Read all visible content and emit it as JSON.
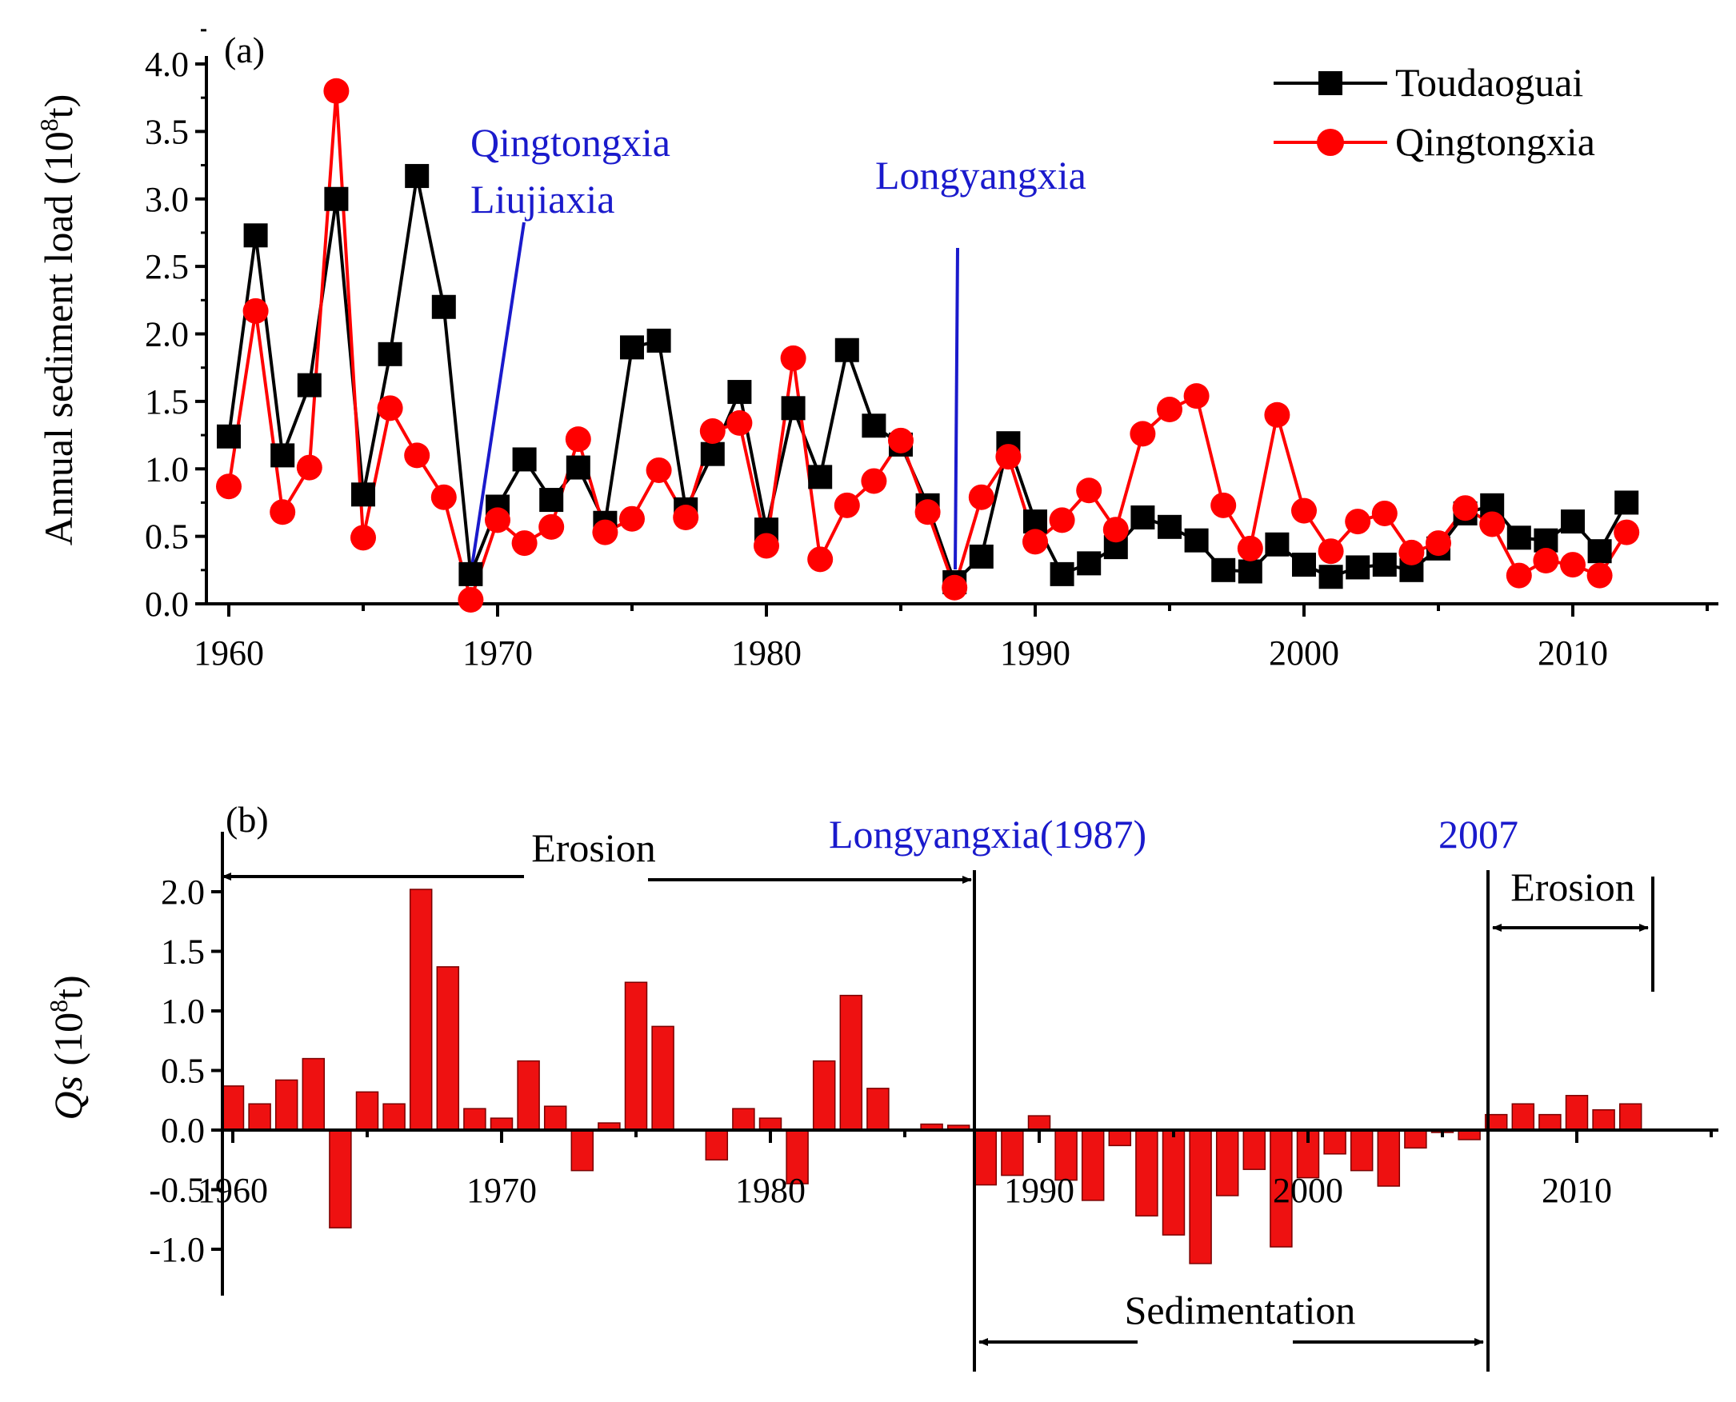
{
  "chart_data": [
    {
      "panel": "a",
      "type": "line",
      "panel_label": "(a)",
      "ylabel_main": "Annual sediment load (10",
      "ylabel_exp": "8",
      "ylabel_tail": "t)",
      "xlim": [
        1960,
        2015
      ],
      "ylim": [
        0,
        4.0
      ],
      "x_ticks": [
        1960,
        1970,
        1980,
        1990,
        2000,
        2010
      ],
      "y_ticks": [
        "0.0",
        "0.5",
        "1.0",
        "1.5",
        "2.0",
        "2.5",
        "3.0",
        "3.5",
        "4.0"
      ],
      "x": [
        1960,
        1961,
        1962,
        1963,
        1964,
        1965,
        1966,
        1967,
        1968,
        1969,
        1970,
        1971,
        1972,
        1973,
        1974,
        1975,
        1976,
        1977,
        1978,
        1979,
        1980,
        1981,
        1982,
        1983,
        1984,
        1985,
        1986,
        1987,
        1988,
        1989,
        1990,
        1991,
        1992,
        1993,
        1994,
        1995,
        1996,
        1997,
        1998,
        1999,
        2000,
        2001,
        2002,
        2003,
        2004,
        2005,
        2006,
        2007,
        2008,
        2009,
        2010,
        2011,
        2012
      ],
      "series": [
        {
          "name": "Toudaoguai",
          "color": "#000000",
          "marker": "square",
          "values": [
            1.24,
            2.73,
            1.1,
            1.62,
            3.0,
            0.81,
            1.85,
            3.17,
            2.2,
            0.22,
            0.72,
            1.07,
            0.77,
            1.01,
            0.6,
            1.9,
            1.95,
            0.7,
            1.11,
            1.57,
            0.55,
            1.45,
            0.94,
            1.88,
            1.32,
            1.18,
            0.73,
            0.16,
            0.35,
            1.19,
            0.61,
            0.22,
            0.3,
            0.42,
            0.64,
            0.57,
            0.47,
            0.25,
            0.24,
            0.44,
            0.29,
            0.2,
            0.27,
            0.29,
            0.25,
            0.41,
            0.67,
            0.73,
            0.49,
            0.47,
            0.61,
            0.39,
            0.75
          ]
        },
        {
          "name": "Qingtongxia",
          "color": "#ff0000",
          "marker": "circle",
          "values": [
            0.87,
            2.17,
            0.68,
            1.01,
            3.8,
            0.49,
            1.45,
            1.1,
            0.79,
            0.03,
            0.62,
            0.45,
            0.57,
            1.22,
            0.53,
            0.63,
            0.99,
            0.64,
            1.28,
            1.34,
            0.43,
            1.82,
            0.33,
            0.73,
            0.91,
            1.21,
            0.68,
            0.12,
            0.79,
            1.09,
            0.46,
            0.62,
            0.84,
            0.55,
            1.26,
            1.44,
            1.54,
            0.73,
            0.41,
            1.4,
            0.69,
            0.39,
            0.61,
            0.67,
            0.38,
            0.45,
            0.71,
            0.59,
            0.21,
            0.32,
            0.29,
            0.21,
            0.53
          ]
        }
      ],
      "annotations": [
        {
          "text": "Qingtongxia",
          "color": "#1a1acc"
        },
        {
          "text": "Liujiaxia",
          "color": "#1a1acc"
        },
        {
          "text": "Longyangxia",
          "color": "#1a1acc"
        }
      ]
    },
    {
      "panel": "b",
      "type": "bar",
      "panel_label": "(b)",
      "ylabel_var": "Qs",
      "ylabel_open": " (10",
      "ylabel_exp": "8",
      "ylabel_tail": "t)",
      "xlim": [
        1960,
        2015
      ],
      "ylim": [
        -1.3,
        2.2
      ],
      "x_ticks": [
        1960,
        1970,
        1980,
        1990,
        2000,
        2010
      ],
      "y_ticks": [
        "-1.0",
        "-0.5",
        "0.0",
        "0.5",
        "1.0",
        "1.5",
        "2.0"
      ],
      "bar_color": "#ee1111",
      "x": [
        1960,
        1961,
        1962,
        1963,
        1964,
        1965,
        1966,
        1967,
        1968,
        1969,
        1970,
        1971,
        1972,
        1973,
        1974,
        1975,
        1976,
        1977,
        1978,
        1979,
        1980,
        1981,
        1982,
        1983,
        1984,
        1985,
        1986,
        1987,
        1988,
        1989,
        1990,
        1991,
        1992,
        1993,
        1994,
        1995,
        1996,
        1997,
        1998,
        1999,
        2000,
        2001,
        2002,
        2003,
        2004,
        2005,
        2006,
        2007,
        2008,
        2009,
        2010,
        2011,
        2012
      ],
      "values": [
        0.37,
        0.22,
        0.42,
        0.6,
        -0.82,
        0.32,
        0.22,
        2.02,
        1.37,
        0.18,
        0.1,
        0.58,
        0.2,
        -0.34,
        0.06,
        1.24,
        0.87,
        0.0,
        -0.25,
        0.18,
        0.1,
        -0.45,
        0.58,
        1.13,
        0.35,
        0.0,
        0.05,
        0.04,
        -0.46,
        -0.38,
        0.12,
        -0.42,
        -0.59,
        -0.13,
        -0.72,
        -0.88,
        -1.12,
        -0.55,
        -0.33,
        -0.98,
        -0.4,
        -0.2,
        -0.34,
        -0.47,
        -0.15,
        -0.02,
        -0.08,
        0.13,
        0.22,
        0.13,
        0.29,
        0.17,
        0.22
      ],
      "annotations": [
        {
          "text": "Erosion",
          "color": "#000000"
        },
        {
          "text": "Longyangxia(1987)",
          "color": "#1a1acc"
        },
        {
          "text": "2007",
          "color": "#1a1acc"
        },
        {
          "text": "Erosion",
          "color": "#000000"
        },
        {
          "text": "Sedimentation",
          "color": "#000000"
        }
      ]
    }
  ]
}
